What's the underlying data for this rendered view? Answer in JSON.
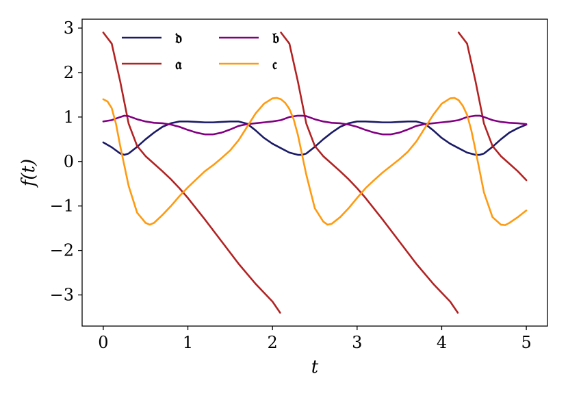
{
  "chart_data": {
    "type": "line",
    "title": "",
    "xlabel": "t",
    "ylabel": "f(t)",
    "xlim": [
      -0.25,
      5.25
    ],
    "ylim": [
      -3.7,
      3.2
    ],
    "xticks": [
      0,
      1,
      2,
      3,
      4,
      5
    ],
    "xtick_labels": [
      "0",
      "1",
      "2",
      "3",
      "4",
      "5"
    ],
    "yticks": [
      -3,
      -2,
      -1,
      0,
      1,
      2,
      3
    ],
    "ytick_labels": [
      "−3",
      "−2",
      "−1",
      "0",
      "1",
      "2",
      "3"
    ],
    "grid": false,
    "legend_position": "top-left",
    "legend_columns": 2,
    "series": [
      {
        "name": "𝔡",
        "color": "#1a1a66",
        "x": [
          0,
          0.1,
          0.2,
          0.25,
          0.3,
          0.4,
          0.5,
          0.6,
          0.7,
          0.8,
          0.9,
          1.0,
          1.1,
          1.2,
          1.3,
          1.4,
          1.5,
          1.6,
          1.7,
          1.8,
          1.9,
          2.0,
          2.1,
          2.2,
          2.3,
          2.35,
          2.4,
          2.5,
          2.6,
          2.7,
          2.8,
          2.9,
          3.0,
          3.1,
          3.2,
          3.3,
          3.4,
          3.5,
          3.6,
          3.7,
          3.8,
          3.9,
          4.0,
          4.1,
          4.2,
          4.3,
          4.4,
          4.45,
          4.5,
          4.6,
          4.7,
          4.8,
          4.9,
          5.0
        ],
        "y": [
          0.43,
          0.32,
          0.18,
          0.15,
          0.18,
          0.33,
          0.5,
          0.65,
          0.78,
          0.86,
          0.9,
          0.9,
          0.89,
          0.88,
          0.88,
          0.89,
          0.9,
          0.9,
          0.85,
          0.7,
          0.53,
          0.4,
          0.3,
          0.2,
          0.15,
          0.15,
          0.18,
          0.33,
          0.5,
          0.65,
          0.78,
          0.86,
          0.9,
          0.9,
          0.89,
          0.88,
          0.88,
          0.89,
          0.9,
          0.9,
          0.85,
          0.7,
          0.53,
          0.4,
          0.3,
          0.2,
          0.15,
          0.15,
          0.18,
          0.33,
          0.5,
          0.65,
          0.75,
          0.83
        ]
      },
      {
        "name": "𝔞",
        "color": "#b22222",
        "x": [
          0,
          0.1,
          0.2,
          0.3,
          0.4,
          0.5,
          0.6,
          0.7,
          0.8,
          0.9,
          1.0,
          1.2,
          1.4,
          1.6,
          1.8,
          2.0,
          2.09,
          2.1,
          2.2,
          2.3,
          2.4,
          2.5,
          2.6,
          2.7,
          2.8,
          2.9,
          3.0,
          3.1,
          3.3,
          3.5,
          3.7,
          3.9,
          4.1,
          4.19,
          4.2,
          4.3,
          4.4,
          4.5,
          4.6,
          4.7,
          4.8,
          4.9,
          5.0
        ],
        "y": [
          2.9,
          2.65,
          1.8,
          0.85,
          0.35,
          0.12,
          -0.05,
          -0.22,
          -0.4,
          -0.6,
          -0.82,
          -1.3,
          -1.8,
          -2.3,
          -2.75,
          -3.15,
          -3.4,
          2.9,
          2.65,
          1.8,
          0.85,
          0.35,
          0.12,
          -0.05,
          -0.22,
          -0.4,
          -0.6,
          -0.82,
          -1.3,
          -1.8,
          -2.3,
          -2.75,
          -3.15,
          -3.4,
          2.9,
          2.65,
          1.8,
          0.85,
          0.35,
          0.12,
          -0.05,
          -0.22,
          -0.42
        ]
      },
      {
        "name": "𝔟",
        "color": "#800080",
        "x": [
          0,
          0.1,
          0.2,
          0.25,
          0.3,
          0.4,
          0.5,
          0.6,
          0.7,
          0.8,
          0.9,
          1.0,
          1.1,
          1.2,
          1.3,
          1.4,
          1.5,
          1.6,
          1.7,
          1.8,
          1.9,
          2.0,
          2.1,
          2.2,
          2.3,
          2.35,
          2.4,
          2.5,
          2.6,
          2.7,
          2.8,
          2.9,
          3.0,
          3.1,
          3.2,
          3.3,
          3.4,
          3.5,
          3.6,
          3.7,
          3.8,
          3.9,
          4.0,
          4.1,
          4.2,
          4.3,
          4.4,
          4.45,
          4.5,
          4.6,
          4.7,
          4.8,
          4.9,
          5.0
        ],
        "y": [
          0.9,
          0.93,
          1.0,
          1.03,
          1.02,
          0.95,
          0.9,
          0.87,
          0.86,
          0.83,
          0.78,
          0.71,
          0.65,
          0.61,
          0.61,
          0.65,
          0.72,
          0.8,
          0.84,
          0.86,
          0.88,
          0.9,
          0.93,
          1.0,
          1.03,
          1.03,
          1.02,
          0.95,
          0.9,
          0.87,
          0.86,
          0.83,
          0.78,
          0.71,
          0.65,
          0.61,
          0.61,
          0.65,
          0.72,
          0.8,
          0.84,
          0.86,
          0.88,
          0.9,
          0.93,
          1.0,
          1.03,
          1.03,
          1.0,
          0.93,
          0.89,
          0.87,
          0.86,
          0.84
        ]
      },
      {
        "name": "𝔠",
        "color": "#ff9a10",
        "x": [
          0,
          0.05,
          0.1,
          0.15,
          0.2,
          0.3,
          0.4,
          0.5,
          0.55,
          0.6,
          0.7,
          0.8,
          0.9,
          1.0,
          1.1,
          1.2,
          1.3,
          1.4,
          1.5,
          1.6,
          1.7,
          1.8,
          1.9,
          2.0,
          2.05,
          2.1,
          2.15,
          2.2,
          2.25,
          2.3,
          2.4,
          2.5,
          2.6,
          2.65,
          2.7,
          2.8,
          2.9,
          3.0,
          3.1,
          3.2,
          3.3,
          3.4,
          3.5,
          3.6,
          3.7,
          3.8,
          3.9,
          4.0,
          4.1,
          4.15,
          4.2,
          4.25,
          4.3,
          4.35,
          4.4,
          4.5,
          4.6,
          4.7,
          4.75,
          4.8,
          4.9,
          5.0
        ],
        "y": [
          1.4,
          1.35,
          1.2,
          0.85,
          0.35,
          -0.55,
          -1.15,
          -1.38,
          -1.42,
          -1.38,
          -1.2,
          -1.0,
          -0.78,
          -0.58,
          -0.4,
          -0.22,
          -0.08,
          0.08,
          0.25,
          0.48,
          0.78,
          1.08,
          1.3,
          1.42,
          1.43,
          1.4,
          1.32,
          1.18,
          0.95,
          0.6,
          -0.3,
          -1.05,
          -1.35,
          -1.42,
          -1.4,
          -1.25,
          -1.05,
          -0.82,
          -0.6,
          -0.42,
          -0.25,
          -0.1,
          0.05,
          0.22,
          0.45,
          0.75,
          1.05,
          1.3,
          1.42,
          1.43,
          1.38,
          1.25,
          1.05,
          0.7,
          0.25,
          -0.7,
          -1.25,
          -1.42,
          -1.43,
          -1.38,
          -1.25,
          -1.1
        ]
      }
    ]
  }
}
